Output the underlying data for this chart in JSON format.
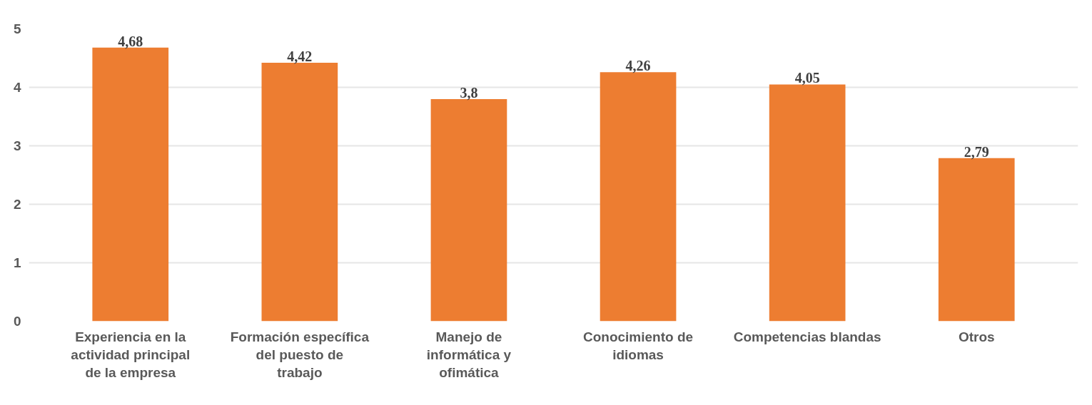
{
  "chart_data": {
    "type": "bar",
    "categories": [
      "Experiencia en la actividad principal de la empresa",
      "Formación específica del puesto de trabajo",
      "Manejo de informática y ofimática",
      "Conocimiento de idiomas",
      "Competencias blandas",
      "Otros"
    ],
    "values": [
      4.68,
      4.42,
      3.8,
      4.26,
      4.05,
      2.79
    ],
    "color": "#ed7d31",
    "value_labels": [
      "4,68",
      "4,42",
      "3,8",
      "4,26",
      "4,05",
      "2,79"
    ],
    "ylim": [
      0,
      5
    ],
    "yticks": [
      0,
      1,
      2,
      3,
      4,
      5
    ],
    "grid": "y"
  }
}
